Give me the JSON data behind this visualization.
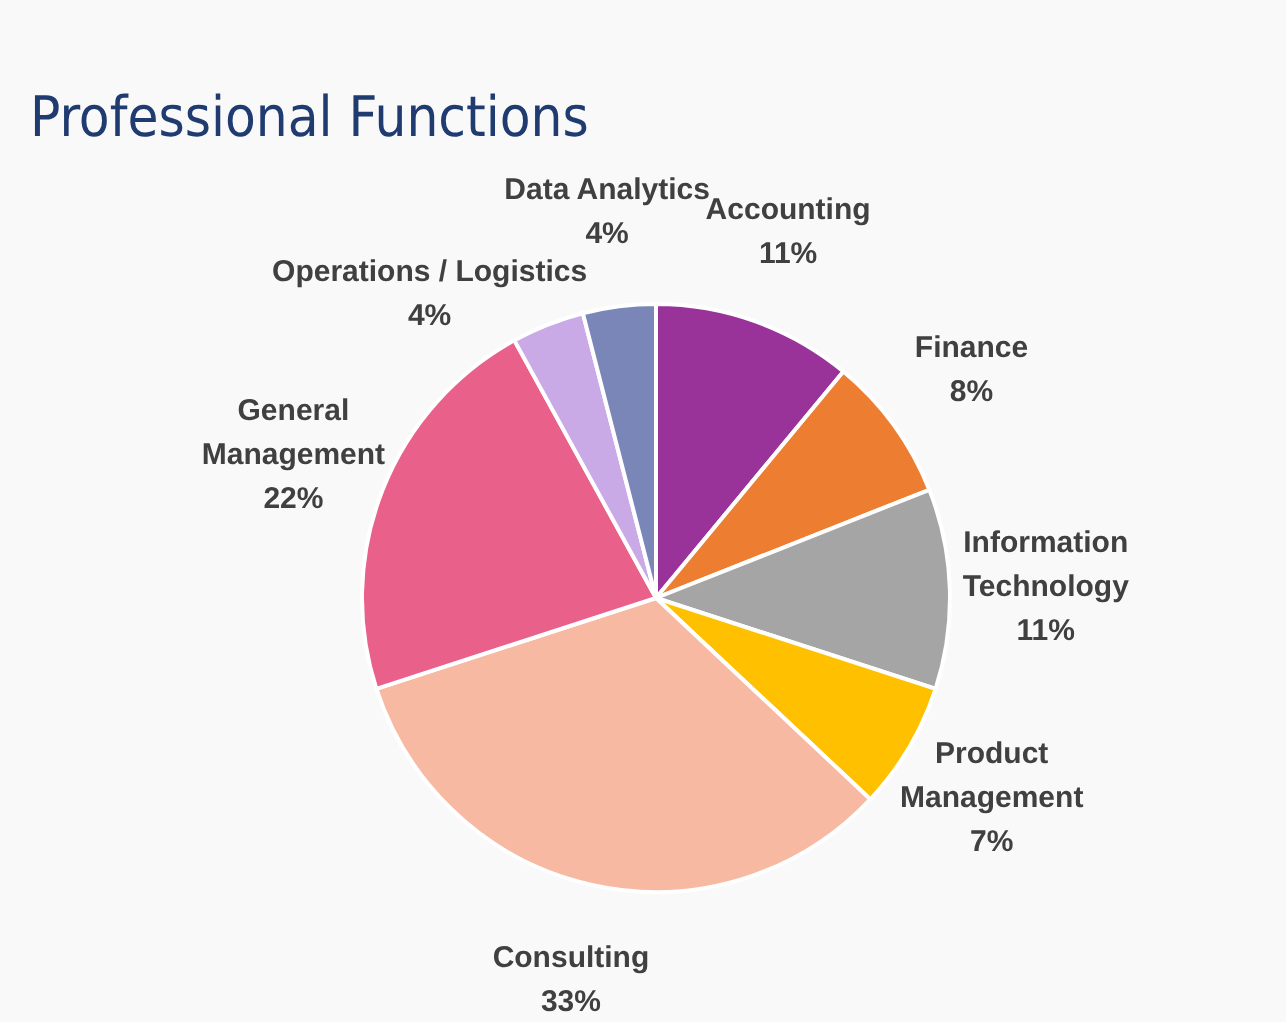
{
  "chart_data": {
    "type": "pie",
    "title": "Professional Functions",
    "categories": [
      "Accounting",
      "Finance",
      "Information Technology",
      "Product Management",
      "Consulting",
      "General Management",
      "Operations / Logistics",
      "Data Analytics"
    ],
    "values": [
      11,
      8,
      11,
      7,
      33,
      22,
      4,
      4
    ],
    "value_labels": [
      "11%",
      "8%",
      "11%",
      "7%",
      "33%",
      "22%",
      "4%",
      "4%"
    ],
    "colors": [
      "#993399",
      "#ed7d31",
      "#a5a5a5",
      "#ffc000",
      "#f8b9a2",
      "#e9608a",
      "#c9a9e6",
      "#7b86b8"
    ],
    "legend": false
  }
}
